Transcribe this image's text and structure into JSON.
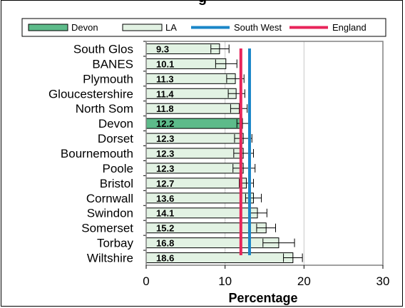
{
  "title_fragment": "g",
  "chart_data": {
    "type": "bar",
    "orientation": "horizontal",
    "categories": [
      "South Glos",
      "BANES",
      "Plymouth",
      "Gloucestershire",
      "North Som",
      "Devon",
      "Dorset",
      "Bournemouth",
      "Poole",
      "Bristol",
      "Cornwall",
      "Swindon",
      "Somerset",
      "Torbay",
      "Wiltshire"
    ],
    "values": [
      9.3,
      10.1,
      11.3,
      11.4,
      11.8,
      12.2,
      12.3,
      12.3,
      12.3,
      12.7,
      13.6,
      14.1,
      15.2,
      16.8,
      18.6
    ],
    "value_labels": [
      "9.3",
      "10.1",
      "11.3",
      "11.4",
      "11.8",
      "12.2",
      "12.3",
      "12.3",
      "12.3",
      "12.7",
      "13.6",
      "14.1",
      "15.2",
      "16.8",
      "18.6"
    ],
    "error_low": [
      8.2,
      8.8,
      10.2,
      10.4,
      10.7,
      11.5,
      11.2,
      11.1,
      11.0,
      11.8,
      12.6,
      13.0,
      14.0,
      14.8,
      17.4
    ],
    "error_high": [
      10.5,
      11.5,
      12.4,
      12.5,
      12.8,
      13.0,
      13.4,
      13.6,
      13.8,
      13.6,
      14.6,
      15.3,
      16.4,
      18.8,
      19.8
    ],
    "highlight_category": "Devon",
    "reference_lines": [
      {
        "name": "South West",
        "value": 13.1,
        "color": "#1a86c8"
      },
      {
        "name": "England",
        "value": 12.0,
        "color": "#e8245a"
      }
    ],
    "xlim": [
      0,
      30
    ],
    "xticks": [
      "0",
      "10",
      "20",
      "30"
    ],
    "xlabel": "Percentage",
    "ylabel": "",
    "grid": "vertical",
    "legend": {
      "position": "top",
      "items": [
        {
          "label": "Devon",
          "type": "bar",
          "color": "#5dbb8a"
        },
        {
          "label": "LA",
          "type": "bar",
          "color": "#e2f2e3"
        },
        {
          "label": "South West",
          "type": "line",
          "color": "#1a86c8"
        },
        {
          "label": "England",
          "type": "line",
          "color": "#e8245a"
        }
      ]
    },
    "colors": {
      "devon_bar": "#5dbb8a",
      "la_bar": "#e2f2e3",
      "plot_bg": "#ffffff"
    }
  }
}
